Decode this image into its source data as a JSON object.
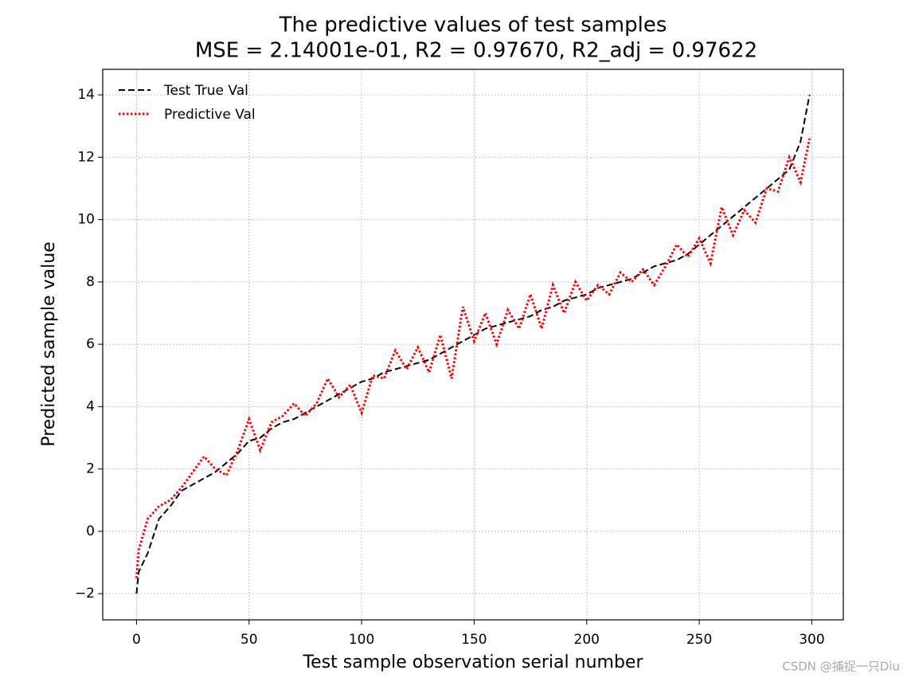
{
  "chart_data": {
    "type": "line",
    "title": [
      "The predictive values of test samples",
      "MSE = 2.14001e-01, R2 = 0.97670, R2_adj = 0.97622"
    ],
    "xlabel": "Test sample observation serial number",
    "ylabel": "Predicted sample value",
    "x": [
      0,
      1,
      5,
      10,
      15,
      20,
      25,
      30,
      35,
      40,
      45,
      50,
      55,
      60,
      65,
      70,
      75,
      80,
      85,
      90,
      95,
      100,
      105,
      110,
      115,
      120,
      125,
      130,
      135,
      140,
      145,
      150,
      155,
      160,
      165,
      170,
      175,
      180,
      185,
      190,
      195,
      200,
      205,
      210,
      215,
      220,
      225,
      230,
      235,
      240,
      245,
      250,
      255,
      260,
      265,
      270,
      275,
      280,
      285,
      290,
      295,
      299
    ],
    "series": [
      {
        "name": "Test True Val",
        "color": "#000000",
        "style": "dashed",
        "values": [
          -2.0,
          -1.3,
          -0.7,
          0.4,
          0.8,
          1.3,
          1.5,
          1.7,
          1.9,
          2.2,
          2.5,
          2.9,
          3.0,
          3.3,
          3.5,
          3.6,
          3.8,
          4.0,
          4.2,
          4.4,
          4.6,
          4.8,
          4.9,
          5.1,
          5.2,
          5.3,
          5.4,
          5.5,
          5.7,
          5.9,
          6.1,
          6.3,
          6.5,
          6.6,
          6.7,
          6.8,
          6.9,
          7.1,
          7.2,
          7.4,
          7.5,
          7.6,
          7.8,
          7.9,
          8.0,
          8.1,
          8.3,
          8.5,
          8.6,
          8.7,
          8.9,
          9.2,
          9.5,
          9.8,
          10.1,
          10.4,
          10.7,
          11.0,
          11.3,
          11.6,
          12.5,
          14.0
        ]
      },
      {
        "name": "Predictive Val",
        "color": "#ff0000",
        "style": "dotted",
        "values": [
          -1.5,
          -0.6,
          0.4,
          0.8,
          1.0,
          1.4,
          1.9,
          2.4,
          2.0,
          1.8,
          2.6,
          3.6,
          2.6,
          3.5,
          3.7,
          4.1,
          3.7,
          4.1,
          4.9,
          4.3,
          4.7,
          3.8,
          5.0,
          4.9,
          5.8,
          5.2,
          5.9,
          5.1,
          6.3,
          4.9,
          7.2,
          6.1,
          7.0,
          6.0,
          7.1,
          6.5,
          7.6,
          6.5,
          7.9,
          7.0,
          8.0,
          7.4,
          7.9,
          7.6,
          8.3,
          8.0,
          8.4,
          7.9,
          8.5,
          9.2,
          8.8,
          9.4,
          8.6,
          10.4,
          9.5,
          10.3,
          9.9,
          11.0,
          10.9,
          12.0,
          11.2,
          12.6
        ]
      }
    ],
    "xlim": [
      -15,
      314
    ],
    "xticks": [
      0,
      50,
      100,
      150,
      200,
      250,
      300
    ],
    "ylim": [
      -2.84,
      14.82
    ],
    "yticks": [
      {
        "value": -2,
        "label": "−2"
      },
      0,
      2,
      4,
      6,
      8,
      10,
      12,
      14
    ],
    "grid": true,
    "legend": "upper left",
    "watermark": "CSDN @捕捉一只Diu"
  }
}
